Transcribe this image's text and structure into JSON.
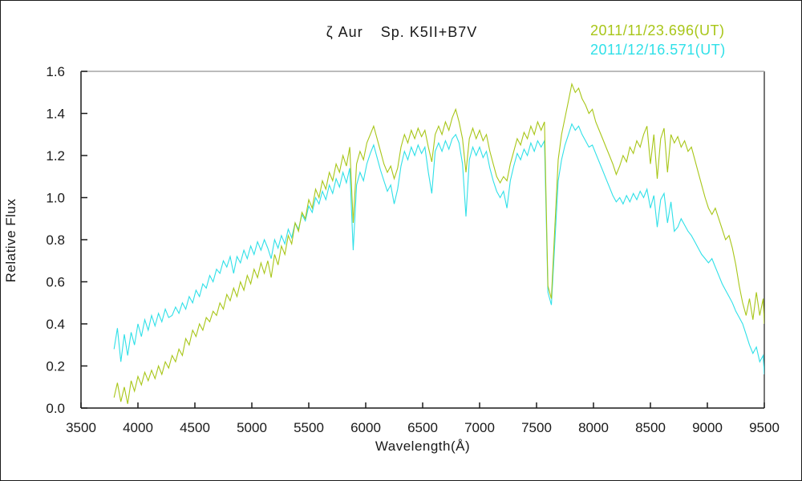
{
  "title": {
    "object": "ζ Aur",
    "spec": "Sp. K5II+B7V"
  },
  "axis": {
    "xlabel": "Wavelength(Å)",
    "ylabel": "Relative Flux"
  },
  "legend": [
    {
      "label": "2011/11/23.696(UT)",
      "color": "#a8c618"
    },
    {
      "label": "2011/12/16.571(UT)",
      "color": "#2fe0e8"
    }
  ],
  "chart_data": {
    "type": "line",
    "title": "ζ Aur Sp. K5II+B7V",
    "xlabel": "Wavelength(Å)",
    "ylabel": "Relative Flux",
    "xlim": [
      3500,
      9500
    ],
    "ylim": [
      0.0,
      1.6
    ],
    "grid": false,
    "legend_position": "top-right",
    "x_ticks": [
      3500,
      4000,
      4500,
      5000,
      5500,
      6000,
      6500,
      7000,
      7500,
      8000,
      8500,
      9000,
      9500
    ],
    "x_tick_labels": [
      "3500",
      "4000",
      "4500",
      "5000",
      "5500",
      "6000",
      "6500",
      "7000",
      "7500",
      "8000",
      "8500",
      "9000",
      "9500"
    ],
    "y_ticks": [
      0.0,
      0.2,
      0.4,
      0.6,
      0.8,
      1.0,
      1.2,
      1.4,
      1.6
    ],
    "y_tick_labels": [
      "0.0",
      "0.2",
      "0.4",
      "0.6",
      "0.8",
      "1.0",
      "1.2",
      "1.4",
      "1.6"
    ],
    "layout": {
      "frame_color": "#1a1a1a",
      "top_border_color": "#a6a6a6",
      "background": "#ffffff"
    },
    "series": [
      {
        "name": "2011/11/23.696(UT)",
        "color": "#a8c618",
        "x_start": 3790,
        "x_step": 30,
        "values": [
          0.05,
          0.12,
          0.03,
          0.1,
          0.02,
          0.13,
          0.08,
          0.15,
          0.11,
          0.17,
          0.13,
          0.18,
          0.14,
          0.2,
          0.16,
          0.22,
          0.19,
          0.25,
          0.22,
          0.28,
          0.25,
          0.33,
          0.3,
          0.37,
          0.34,
          0.4,
          0.37,
          0.43,
          0.41,
          0.46,
          0.44,
          0.5,
          0.47,
          0.54,
          0.51,
          0.57,
          0.53,
          0.6,
          0.56,
          0.63,
          0.59,
          0.66,
          0.62,
          0.69,
          0.64,
          0.7,
          0.62,
          0.73,
          0.68,
          0.77,
          0.73,
          0.82,
          0.78,
          0.88,
          0.84,
          0.93,
          0.9,
          0.99,
          0.95,
          1.04,
          1.0,
          1.08,
          1.04,
          1.12,
          1.08,
          1.16,
          1.12,
          1.2,
          1.15,
          1.24,
          0.88,
          1.16,
          1.22,
          1.18,
          1.26,
          1.3,
          1.34,
          1.28,
          1.22,
          1.16,
          1.12,
          1.15,
          1.09,
          1.14,
          1.24,
          1.3,
          1.26,
          1.32,
          1.28,
          1.33,
          1.29,
          1.32,
          1.24,
          1.17,
          1.3,
          1.34,
          1.3,
          1.36,
          1.32,
          1.38,
          1.42,
          1.36,
          1.28,
          1.12,
          1.28,
          1.33,
          1.28,
          1.32,
          1.27,
          1.3,
          1.22,
          1.16,
          1.1,
          1.07,
          1.1,
          1.08,
          1.16,
          1.22,
          1.28,
          1.25,
          1.31,
          1.28,
          1.34,
          1.3,
          1.36,
          1.32,
          1.36,
          0.58,
          0.52,
          0.85,
          1.18,
          1.3,
          1.38,
          1.46,
          1.54,
          1.5,
          1.52,
          1.47,
          1.44,
          1.4,
          1.42,
          1.36,
          1.32,
          1.28,
          1.24,
          1.2,
          1.16,
          1.11,
          1.15,
          1.2,
          1.17,
          1.24,
          1.21,
          1.27,
          1.24,
          1.3,
          1.34,
          1.16,
          1.3,
          1.09,
          1.28,
          1.33,
          1.12,
          1.3,
          1.26,
          1.29,
          1.24,
          1.27,
          1.22,
          1.24,
          1.18,
          1.12,
          1.06,
          1.0,
          0.95,
          0.92,
          0.95,
          0.9,
          0.85,
          0.8,
          0.82,
          0.76,
          0.68,
          0.58,
          0.5,
          0.44,
          0.52,
          0.42,
          0.55,
          0.44,
          0.52,
          0.4
        ]
      },
      {
        "name": "2011/12/16.571(UT)",
        "color": "#2fe0e8",
        "x_start": 3790,
        "x_step": 30,
        "values": [
          0.28,
          0.38,
          0.22,
          0.35,
          0.25,
          0.36,
          0.3,
          0.4,
          0.34,
          0.42,
          0.37,
          0.44,
          0.39,
          0.45,
          0.41,
          0.47,
          0.43,
          0.44,
          0.48,
          0.45,
          0.5,
          0.47,
          0.53,
          0.5,
          0.56,
          0.53,
          0.59,
          0.57,
          0.63,
          0.6,
          0.66,
          0.64,
          0.7,
          0.67,
          0.72,
          0.64,
          0.72,
          0.69,
          0.75,
          0.71,
          0.77,
          0.73,
          0.79,
          0.75,
          0.8,
          0.76,
          0.71,
          0.8,
          0.76,
          0.82,
          0.78,
          0.85,
          0.81,
          0.88,
          0.85,
          0.92,
          0.89,
          0.96,
          0.93,
          1.0,
          0.97,
          1.03,
          0.99,
          1.06,
          1.02,
          1.09,
          1.05,
          1.12,
          1.07,
          1.14,
          0.75,
          1.06,
          1.12,
          1.08,
          1.16,
          1.21,
          1.25,
          1.19,
          1.13,
          1.08,
          1.03,
          1.06,
          0.97,
          1.04,
          1.15,
          1.22,
          1.18,
          1.24,
          1.2,
          1.25,
          1.21,
          1.24,
          1.12,
          1.02,
          1.22,
          1.26,
          1.22,
          1.27,
          1.23,
          1.28,
          1.3,
          1.26,
          1.16,
          0.91,
          1.18,
          1.24,
          1.2,
          1.24,
          1.19,
          1.22,
          1.14,
          1.08,
          1.03,
          1.0,
          1.03,
          0.95,
          1.08,
          1.15,
          1.21,
          1.18,
          1.23,
          1.2,
          1.26,
          1.22,
          1.27,
          1.24,
          1.27,
          0.55,
          0.49,
          0.78,
          1.08,
          1.18,
          1.25,
          1.3,
          1.35,
          1.32,
          1.34,
          1.3,
          1.27,
          1.24,
          1.25,
          1.21,
          1.17,
          1.13,
          1.09,
          1.05,
          1.01,
          0.98,
          1.0,
          0.97,
          1.01,
          0.98,
          1.02,
          0.99,
          1.03,
          1.0,
          1.04,
          0.95,
          1.01,
          0.86,
          0.99,
          1.02,
          0.88,
          0.98,
          0.84,
          0.86,
          0.9,
          0.87,
          0.84,
          0.82,
          0.79,
          0.76,
          0.73,
          0.71,
          0.69,
          0.71,
          0.67,
          0.63,
          0.59,
          0.56,
          0.53,
          0.5,
          0.46,
          0.43,
          0.4,
          0.35,
          0.3,
          0.26,
          0.29,
          0.22,
          0.25,
          0.16
        ]
      }
    ]
  }
}
